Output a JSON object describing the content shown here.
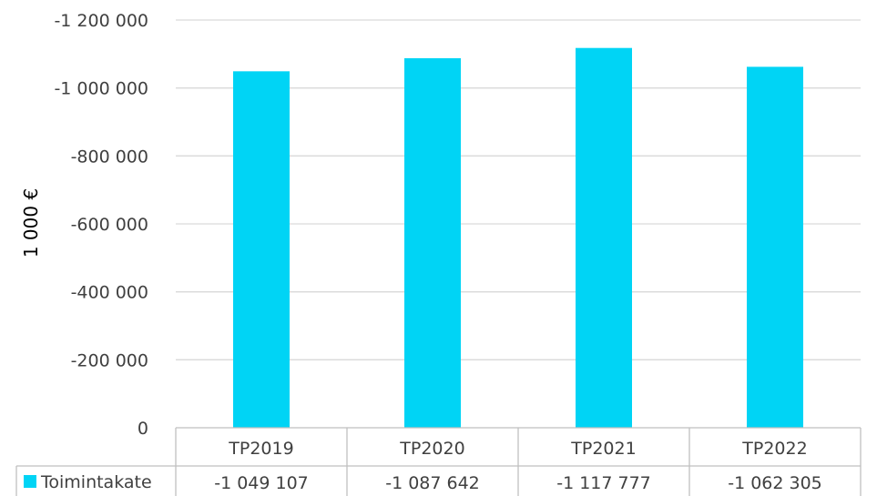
{
  "chart_data": {
    "type": "bar",
    "categories": [
      "TP2019",
      "TP2020",
      "TP2021",
      "TP2022"
    ],
    "series": [
      {
        "name": "Toimintakate",
        "values": [
          -1049107,
          -1087642,
          -1117777,
          -1062305
        ],
        "value_labels": [
          "-1 049 107",
          "-1 087 642",
          "-1 117 777",
          "-1 062 305"
        ],
        "color": "#00d4f5"
      }
    ],
    "ylabel": "1 000 €",
    "ylim": [
      0,
      -1200000
    ],
    "y_ticks": [
      0,
      -200000,
      -400000,
      -600000,
      -800000,
      -1000000,
      -1200000
    ],
    "y_tick_labels": [
      "0",
      "-200 000",
      "-400 000",
      "-600 000",
      "-800 000",
      "-1 000 000",
      "-1 200 000"
    ],
    "y_axis_reversed": true,
    "grid": true,
    "legend": "data-table",
    "data_table": true
  }
}
